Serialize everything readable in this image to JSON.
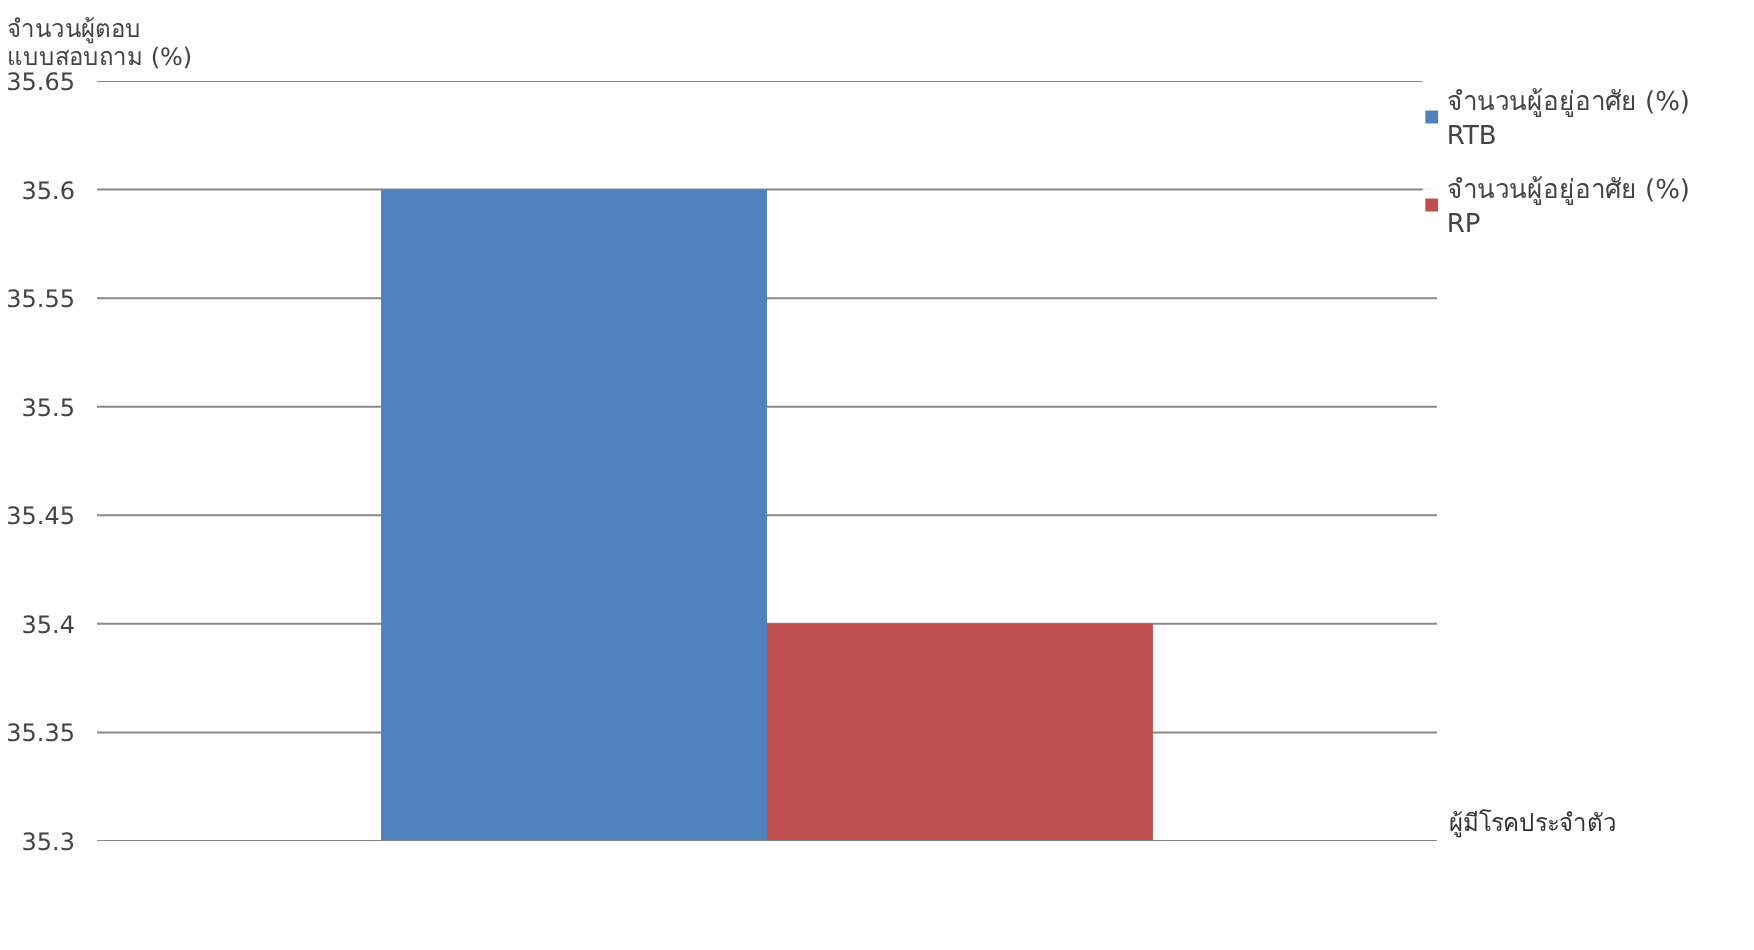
{
  "chart_data": {
    "type": "bar",
    "ylabel": "จำนวนผู้ตอบ แบบสอบถาม (%)",
    "xlabel": "ผู้มีโรคประจำตัว",
    "categories": [
      null
    ],
    "series": [
      {
        "name": "จำนวนผู้อยู่อาศัย (%) RTB",
        "color": "#4f81bd",
        "values": [
          35.6
        ]
      },
      {
        "name": "จำนวนผู้อยู่อาศัย (%) RP",
        "color": "#c0504d",
        "values": [
          35.4
        ]
      }
    ],
    "ylim": [
      35.3,
      35.65
    ],
    "yticks": [
      35.3,
      35.35,
      35.4,
      35.45,
      35.5,
      35.55,
      35.6,
      35.65
    ],
    "grid": "y",
    "legend": "top right"
  }
}
